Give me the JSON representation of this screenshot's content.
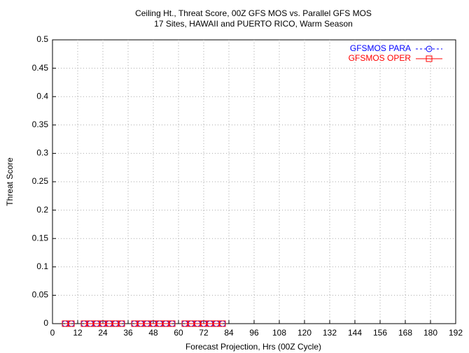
{
  "chart_data": {
    "type": "line",
    "title": "Ceiling Ht., Threat Score, 00Z GFS MOS vs. Parallel GFS MOS",
    "subtitle": "17 Sites, HAWAII and PUERTO RICO, Warm Season",
    "x_label": "Forecast Projection, Hrs (00Z Cycle)",
    "y_label": "Threat Score",
    "x": [
      6,
      9,
      12,
      15,
      18,
      21,
      24,
      27,
      30,
      33,
      36,
      39,
      42,
      45,
      48,
      51,
      54,
      57,
      60,
      63,
      66,
      69,
      72,
      75,
      78,
      81
    ],
    "series": [
      {
        "name": "GFSMOS PARA",
        "color": "#0000ff",
        "marker": "circle",
        "dash": true,
        "values": [
          0,
          0,
          null,
          0,
          0,
          0,
          0,
          0,
          0,
          0,
          null,
          0,
          0,
          0,
          0,
          0,
          0,
          0,
          null,
          0,
          0,
          0,
          0,
          0,
          0,
          0
        ]
      },
      {
        "name": "GFSMOS OPER",
        "color": "#ff0000",
        "marker": "square",
        "dash": false,
        "values": [
          0,
          0,
          null,
          0,
          0,
          0,
          0,
          0,
          0,
          0,
          null,
          0,
          0,
          0,
          0,
          0,
          0,
          0,
          null,
          0,
          0,
          0,
          0,
          0,
          0,
          0
        ]
      }
    ],
    "xlim": [
      0,
      192
    ],
    "xticks": [
      0,
      12,
      24,
      36,
      48,
      60,
      72,
      84,
      96,
      108,
      120,
      132,
      144,
      156,
      168,
      180,
      192
    ],
    "ylim": [
      0,
      0.5
    ],
    "yticks": [
      0,
      0.05,
      0.1,
      0.15,
      0.2,
      0.25,
      0.3,
      0.35,
      0.4,
      0.45,
      0.5
    ],
    "grid": true,
    "legend": "top-right"
  }
}
